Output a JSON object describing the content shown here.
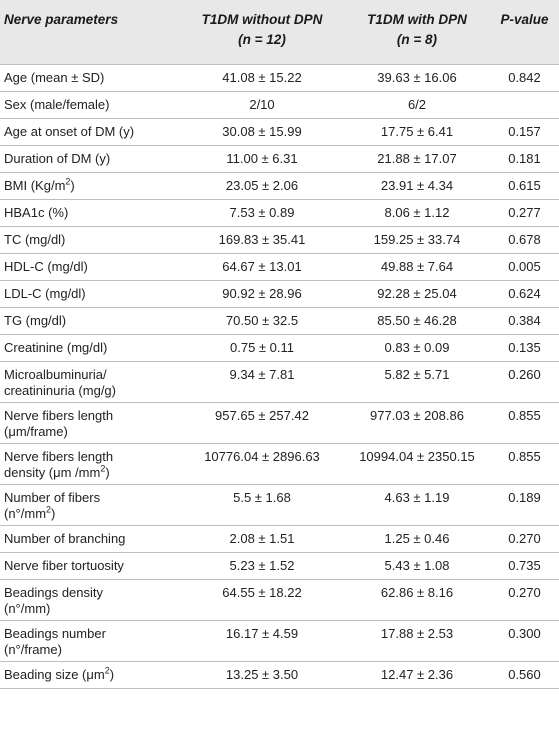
{
  "header": {
    "col_param": "Nerve parameters",
    "col_without_line1": "T1DM without DPN",
    "col_without_line2": "(n = 12)",
    "col_with_line1": "T1DM with DPN",
    "col_with_line2": "(n = 8)",
    "col_pvalue": "P-value"
  },
  "rows": [
    {
      "param": "Age (mean ± SD)",
      "without": "41.08 ± 15.22",
      "with": "39.63 ± 16.06",
      "p": "0.842"
    },
    {
      "param": "Sex (male/female)",
      "without": "2/10",
      "with": "6/2",
      "p": ""
    },
    {
      "param": "Age at onset of DM (y)",
      "without": "30.08 ± 15.99",
      "with": "17.75 ± 6.41",
      "p": "0.157"
    },
    {
      "param": "Duration of DM (y)",
      "without": "11.00 ± 6.31",
      "with": "21.88 ± 17.07",
      "p": "0.181"
    },
    {
      "param": "BMI (Kg/m",
      "param_sup": "2",
      "param_after": ")",
      "without": "23.05 ± 2.06",
      "with": "23.91 ± 4.34",
      "p": "0.615"
    },
    {
      "param": "HBA1c (%)",
      "without": "7.53 ± 0.89",
      "with": "8.06 ± 1.12",
      "p": "0.277"
    },
    {
      "param": "TC (mg/dl)",
      "without": "169.83 ± 35.41",
      "with": "159.25 ± 33.74",
      "p": "0.678"
    },
    {
      "param": "HDL-C (mg/dl)",
      "without": "64.67 ± 13.01",
      "with": "49.88 ± 7.64",
      "p": "0.005"
    },
    {
      "param": "LDL-C (mg/dl)",
      "without": "90.92 ± 28.96",
      "with": "92.28 ± 25.04",
      "p": "0.624"
    },
    {
      "param": "TG (mg/dl)",
      "without": "70.50 ± 32.5",
      "with": "85.50 ± 46.28",
      "p": "0.384"
    },
    {
      "param": "Creatinine (mg/dl)",
      "without": "0.75 ± 0.11",
      "with": "0.83 ± 0.09",
      "p": "0.135"
    },
    {
      "param": "Microalbuminuria/",
      "param_line2": "creatininuria (mg/g)",
      "without": "9.34 ± 7.81",
      "with": "5.82 ± 5.71",
      "p": "0.260"
    },
    {
      "param": "Nerve fibers length",
      "param_line2": "(μm/frame)",
      "without": "957.65 ± 257.42",
      "with": "977.03 ± 208.86",
      "p": "0.855"
    },
    {
      "param": "Nerve fibers length",
      "param_line2": "density (μm /mm",
      "param_line2_sup": "2",
      "param_line2_after": ")",
      "without": "10776.04 ± 2896.63",
      "with": "10994.04 ± 2350.15",
      "p": "0.855"
    },
    {
      "param": "Number of fibers",
      "param_line2": "(n°/mm",
      "param_line2_sup": "2",
      "param_line2_after": ")",
      "without": "5.5 ± 1.68",
      "with": "4.63 ± 1.19",
      "p": "0.189"
    },
    {
      "param": "Number of branching",
      "without": "2.08 ± 1.51",
      "with": "1.25 ± 0.46",
      "p": "0.270"
    },
    {
      "param": "Nerve fiber tortuosity",
      "without": "5.23 ± 1.52",
      "with": "5.43 ± 1.08",
      "p": "0.735"
    },
    {
      "param": "Beadings density",
      "param_line2": "(n°/mm)",
      "without": "64.55 ± 18.22",
      "with": "62.86 ± 8.16",
      "p": "0.270"
    },
    {
      "param": "Beadings number",
      "param_line2": "(n°/frame)",
      "without": "16.17 ± 4.59",
      "with": "17.88 ± 2.53",
      "p": "0.300"
    },
    {
      "param": "Beading size (μm",
      "param_sup": "2",
      "param_after": ")",
      "without": "13.25 ± 3.50",
      "with": "12.47 ± 2.36",
      "p": "0.560"
    }
  ]
}
